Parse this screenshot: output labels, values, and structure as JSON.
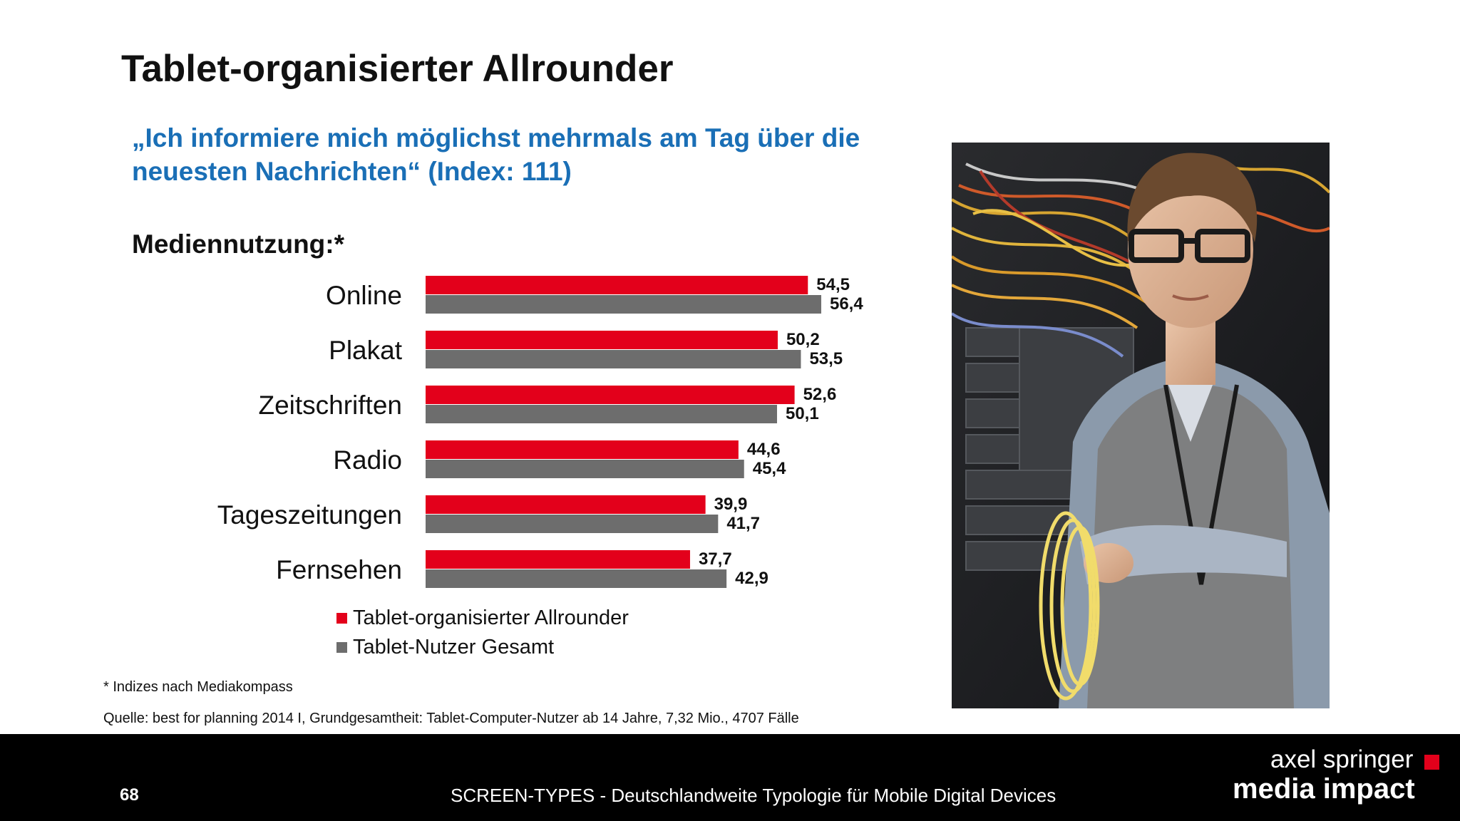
{
  "title": "Tablet-organisierter Allrounder",
  "quote": {
    "line1": "„Ich informiere mich möglichst mehrmals am Tag über die",
    "line2": "neuesten Nachrichten“ (Index: 111)"
  },
  "subheading": "Mediennutzung:*",
  "colors": {
    "series1": "#e3001b",
    "series2": "#6d6d6d",
    "quote": "#1a6fb6"
  },
  "chart_data": {
    "type": "bar",
    "orientation": "horizontal",
    "categories": [
      "Online",
      "Plakat",
      "Zeitschriften",
      "Radio",
      "Tageszeitungen",
      "Fernsehen"
    ],
    "series": [
      {
        "name": "Tablet-organisierter Allrounder",
        "values": [
          54.5,
          50.2,
          52.6,
          44.6,
          39.9,
          37.7
        ],
        "labels": [
          "54,5",
          "50,2",
          "52,6",
          "44,6",
          "39,9",
          "37,7"
        ]
      },
      {
        "name": "Tablet-Nutzer Gesamt",
        "values": [
          56.4,
          53.5,
          50.1,
          45.4,
          41.7,
          42.9
        ],
        "labels": [
          "56,4",
          "53,5",
          "50,1",
          "45,4",
          "41,7",
          "42,9"
        ]
      }
    ],
    "xlim": [
      0,
      60
    ],
    "grid": false,
    "legend": "bottom"
  },
  "legend": {
    "item1": "Tablet-organisierter Allrounder",
    "item2": "Tablet-Nutzer Gesamt"
  },
  "footnote": "* Indizes nach Mediakompass",
  "source": "Quelle: best for planning 2014 I, Grundgesamtheit: Tablet-Computer-Nutzer ab 14 Jahre, 7,32 Mio., 4707 Fälle",
  "footer": {
    "page_number": "68",
    "text": "SCREEN-TYPES - Deutschlandweite Typologie für Mobile Digital Devices",
    "brand_line1": "axel springer",
    "brand_line2": "media impact"
  }
}
